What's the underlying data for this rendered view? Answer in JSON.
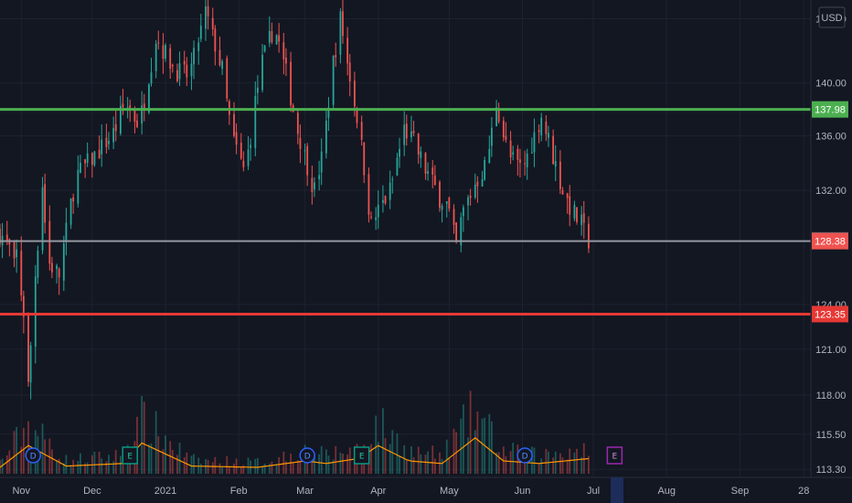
{
  "axis": {
    "currency": "USD",
    "y_ticks": [
      "145.00",
      "140.00",
      "136.00",
      "132.00",
      "124.00",
      "121.00",
      "118.00",
      "115.50",
      "113.30"
    ],
    "x_ticks": [
      "Nov",
      "Dec",
      "2021",
      "Feb",
      "Mar",
      "Apr",
      "May",
      "Jun",
      "Jul",
      "Aug",
      "Sep",
      "28"
    ]
  },
  "colors": {
    "background": "#131722",
    "grid": "#1e2230",
    "up": "#26a69a",
    "down": "#ef5350",
    "resistance": "#4caf50",
    "support": "#e53935",
    "last_price": "#9598a1",
    "volume_ma": "#ff9800",
    "highlight_band": "#1e2c5a"
  },
  "chart_data": {
    "type": "candlestick",
    "y_scale": "log",
    "ylim": [
      112.8,
      146.5
    ],
    "x_range": [
      "2020-10-23",
      "2021-10-01"
    ],
    "price_path": [
      [
        "2020-10-23",
        129.0
      ],
      [
        "2020-10-27",
        127.8
      ],
      [
        "2020-10-29",
        126.5
      ],
      [
        "2020-10-30",
        127.5
      ],
      [
        "2020-11-02",
        123.5
      ],
      [
        "2020-11-04",
        118.5
      ],
      [
        "2020-11-06",
        124.0
      ],
      [
        "2020-11-10",
        132.5
      ],
      [
        "2020-11-12",
        127.0
      ],
      [
        "2020-11-17",
        126.0
      ],
      [
        "2020-11-24",
        133.0
      ],
      [
        "2020-12-02",
        134.5
      ],
      [
        "2020-12-10",
        136.2
      ],
      [
        "2020-12-15",
        138.5
      ],
      [
        "2020-12-21",
        136.8
      ],
      [
        "2020-12-28",
        143.5
      ],
      [
        "2021-01-05",
        141.0
      ],
      [
        "2021-01-11",
        140.5
      ],
      [
        "2021-01-18",
        145.5
      ],
      [
        "2021-01-25",
        141.0
      ],
      [
        "2021-01-29",
        136.0
      ],
      [
        "2021-02-03",
        133.5
      ],
      [
        "2021-02-05",
        134.8
      ],
      [
        "2021-02-10",
        141.0
      ],
      [
        "2021-02-16",
        144.5
      ],
      [
        "2021-02-22",
        140.0
      ],
      [
        "2021-02-25",
        137.0
      ],
      [
        "2021-03-01",
        134.5
      ],
      [
        "2021-03-05",
        132.0
      ],
      [
        "2021-03-09",
        135.0
      ],
      [
        "2021-03-12",
        140.5
      ],
      [
        "2021-03-16",
        145.0
      ],
      [
        "2021-03-19",
        141.5
      ],
      [
        "2021-03-24",
        136.5
      ],
      [
        "2021-03-29",
        129.5
      ],
      [
        "2021-04-01",
        130.5
      ],
      [
        "2021-04-06",
        132.0
      ],
      [
        "2021-04-12",
        136.5
      ],
      [
        "2021-04-16",
        135.5
      ],
      [
        "2021-04-21",
        133.5
      ],
      [
        "2021-04-27",
        131.5
      ],
      [
        "2021-04-30",
        131.0
      ],
      [
        "2021-05-04",
        128.0
      ],
      [
        "2021-05-07",
        130.5
      ],
      [
        "2021-05-12",
        132.5
      ],
      [
        "2021-05-17",
        134.0
      ],
      [
        "2021-05-21",
        138.5
      ],
      [
        "2021-05-26",
        134.5
      ],
      [
        "2021-06-01",
        133.5
      ],
      [
        "2021-06-05",
        135.5
      ],
      [
        "2021-06-09",
        137.5
      ],
      [
        "2021-06-14",
        134.5
      ],
      [
        "2021-06-18",
        132.0
      ],
      [
        "2021-06-22",
        130.5
      ],
      [
        "2021-06-26",
        129.5
      ],
      [
        "2021-06-28",
        128.5
      ],
      [
        "2021-06-30",
        128.38
      ]
    ],
    "volume_path": [
      [
        "2020-10-23",
        0.05
      ],
      [
        "2020-11-04",
        0.22
      ],
      [
        "2020-11-20",
        0.06
      ],
      [
        "2020-12-14",
        0.08
      ],
      [
        "2020-12-22",
        0.24
      ],
      [
        "2021-01-12",
        0.06
      ],
      [
        "2021-02-09",
        0.05
      ],
      [
        "2021-03-01",
        0.1
      ],
      [
        "2021-03-10",
        0.08
      ],
      [
        "2021-03-24",
        0.12
      ],
      [
        "2021-04-01",
        0.22
      ],
      [
        "2021-04-14",
        0.1
      ],
      [
        "2021-04-28",
        0.08
      ],
      [
        "2021-05-12",
        0.28
      ],
      [
        "2021-05-24",
        0.1
      ],
      [
        "2021-06-08",
        0.08
      ],
      [
        "2021-06-30",
        0.12
      ]
    ],
    "levels": [
      {
        "label": "137.98",
        "value": 137.98
      },
      {
        "label": "123.35",
        "value": 123.35
      }
    ],
    "last_close": {
      "label": "128.38",
      "value": 128.38
    },
    "last_line": {
      "label": "128.43",
      "value": 128.43
    },
    "events": [
      {
        "type": "D",
        "date": "2020-11-06"
      },
      {
        "type": "E",
        "date": "2020-12-17"
      },
      {
        "type": "D",
        "date": "2021-03-02"
      },
      {
        "type": "E",
        "date": "2021-03-25"
      },
      {
        "type": "D",
        "date": "2021-06-02"
      },
      {
        "type": "E",
        "date": "2021-07-10",
        "upcoming": true
      }
    ]
  }
}
